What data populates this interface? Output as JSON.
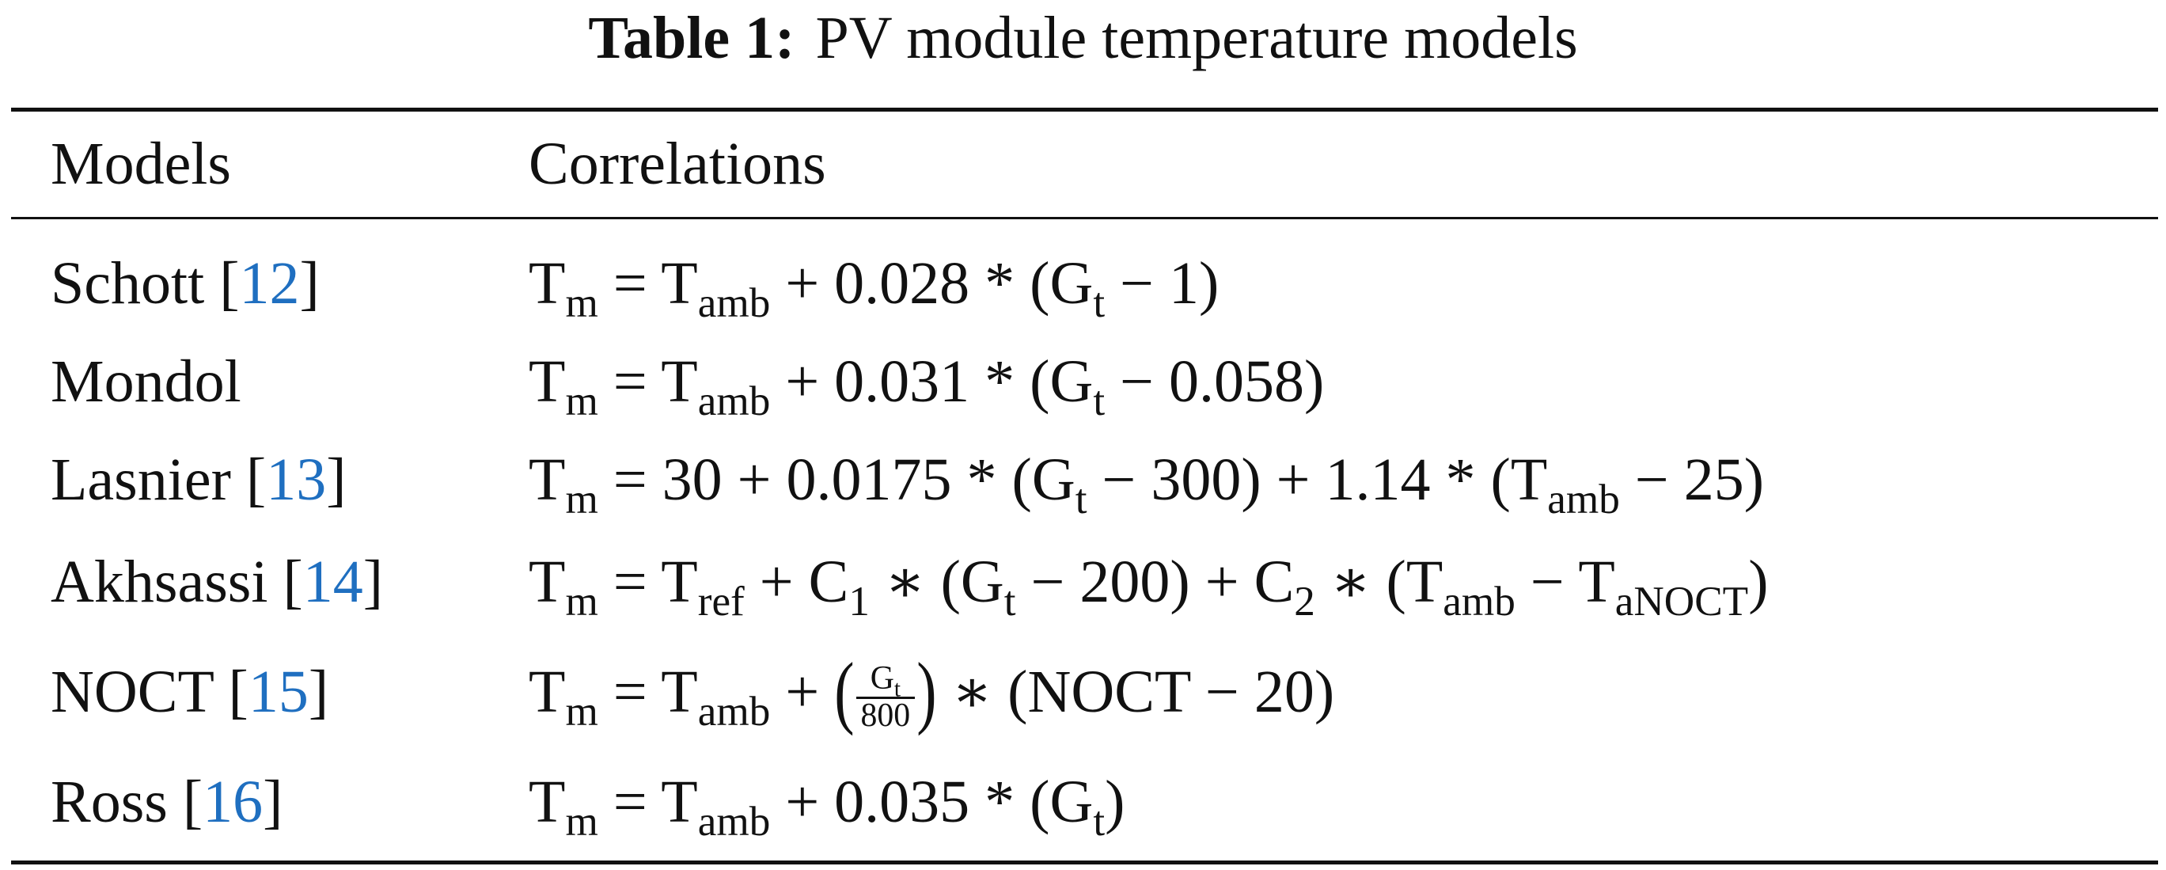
{
  "caption": {
    "label": "Table 1:",
    "text": "PV module temperature models"
  },
  "table": {
    "headers": [
      "Models",
      "Correlations"
    ],
    "rows": [
      {
        "model": "Schott [",
        "ref": "12",
        "close": "]",
        "eq": {
          "t1": "T",
          "t1s": "m",
          "p1": " = T",
          "p1s": "amb",
          "p2": " + 0.028 * (G",
          "p2s": "t",
          "p3": " − 1)"
        }
      },
      {
        "model": "Mondol",
        "eq": {
          "t1": "T",
          "t1s": "m",
          "p1": " = T",
          "p1s": "amb",
          "p2": " + 0.031 * (G",
          "p2s": "t",
          "p3": " − 0.058)"
        }
      },
      {
        "model": "Lasnier [",
        "ref": "13",
        "close": "]",
        "eq": {
          "t1": "T",
          "t1s": "m",
          "p1": " = 30 + 0.0175 * (G",
          "p1s": "t",
          "p2": " − 300) + 1.14 * (T",
          "p2s": "amb",
          "p3": " − 25)"
        }
      },
      {
        "model": "Akhsassi [",
        "ref": "14",
        "close": "]",
        "eq": {
          "t1": "T",
          "t1s": "m",
          "p1": " = T",
          "p1s": "ref",
          "p2": " + C",
          "p2s": "1",
          "p3": " ∗ (G",
          "p3s": "t",
          "p4": " − 200) + C",
          "p4s": "2",
          "p5": " ∗ (T",
          "p5s": "amb",
          "p6": " − T",
          "p6s": "aNOCT",
          "p7": ")"
        }
      },
      {
        "model": "NOCT [",
        "ref": "15",
        "close": "]",
        "eq": {
          "t1": "T",
          "t1s": "m",
          "p1": " = T",
          "p1s": "amb",
          "p2": " + ",
          "frac_num": "G",
          "frac_num_sub": "t",
          "frac_den": "800",
          "p3": " ∗ (NOCT − 20)"
        }
      },
      {
        "model": "Ross [",
        "ref": "16",
        "close": "]",
        "eq": {
          "t1": "T",
          "t1s": "m",
          "p1": " = T",
          "p1s": "amb",
          "p2": " + 0.035 * (G",
          "p2s": "t",
          "p3": ")"
        }
      }
    ]
  }
}
